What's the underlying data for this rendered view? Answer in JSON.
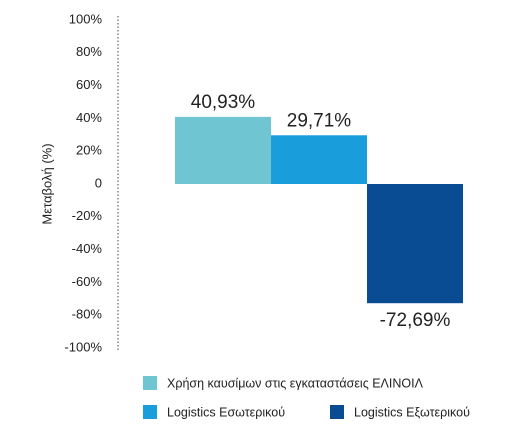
{
  "chart_data": {
    "type": "bar",
    "ylabel": "Μεταβολή (%)",
    "categories": [
      "Χρήση καυσίμων στις εγκαταστάσεις ΕΛΙΝΟΙΛ",
      "Logistics Εσωτερικού",
      "Logistics Εξωτερικού"
    ],
    "values": [
      40.93,
      29.71,
      -72.69
    ],
    "value_labels": [
      "40,93%",
      "29,71%",
      "-72,69%"
    ],
    "colors": [
      "#6fc5d1",
      "#1a9edb",
      "#0a4c94"
    ],
    "ylim": [
      -100,
      100
    ],
    "yticks": [
      {
        "value": -100,
        "label": "-100%"
      },
      {
        "value": -80,
        "label": "-80%"
      },
      {
        "value": -60,
        "label": "-60%"
      },
      {
        "value": -40,
        "label": "-40%"
      },
      {
        "value": -20,
        "label": "-20%"
      },
      0,
      {
        "value": 20,
        "label": "20%"
      },
      {
        "value": 40,
        "label": "40%"
      },
      {
        "value": 60,
        "label": "60%"
      },
      {
        "value": 80,
        "label": "80%"
      },
      {
        "value": 100,
        "label": "100%"
      }
    ]
  }
}
